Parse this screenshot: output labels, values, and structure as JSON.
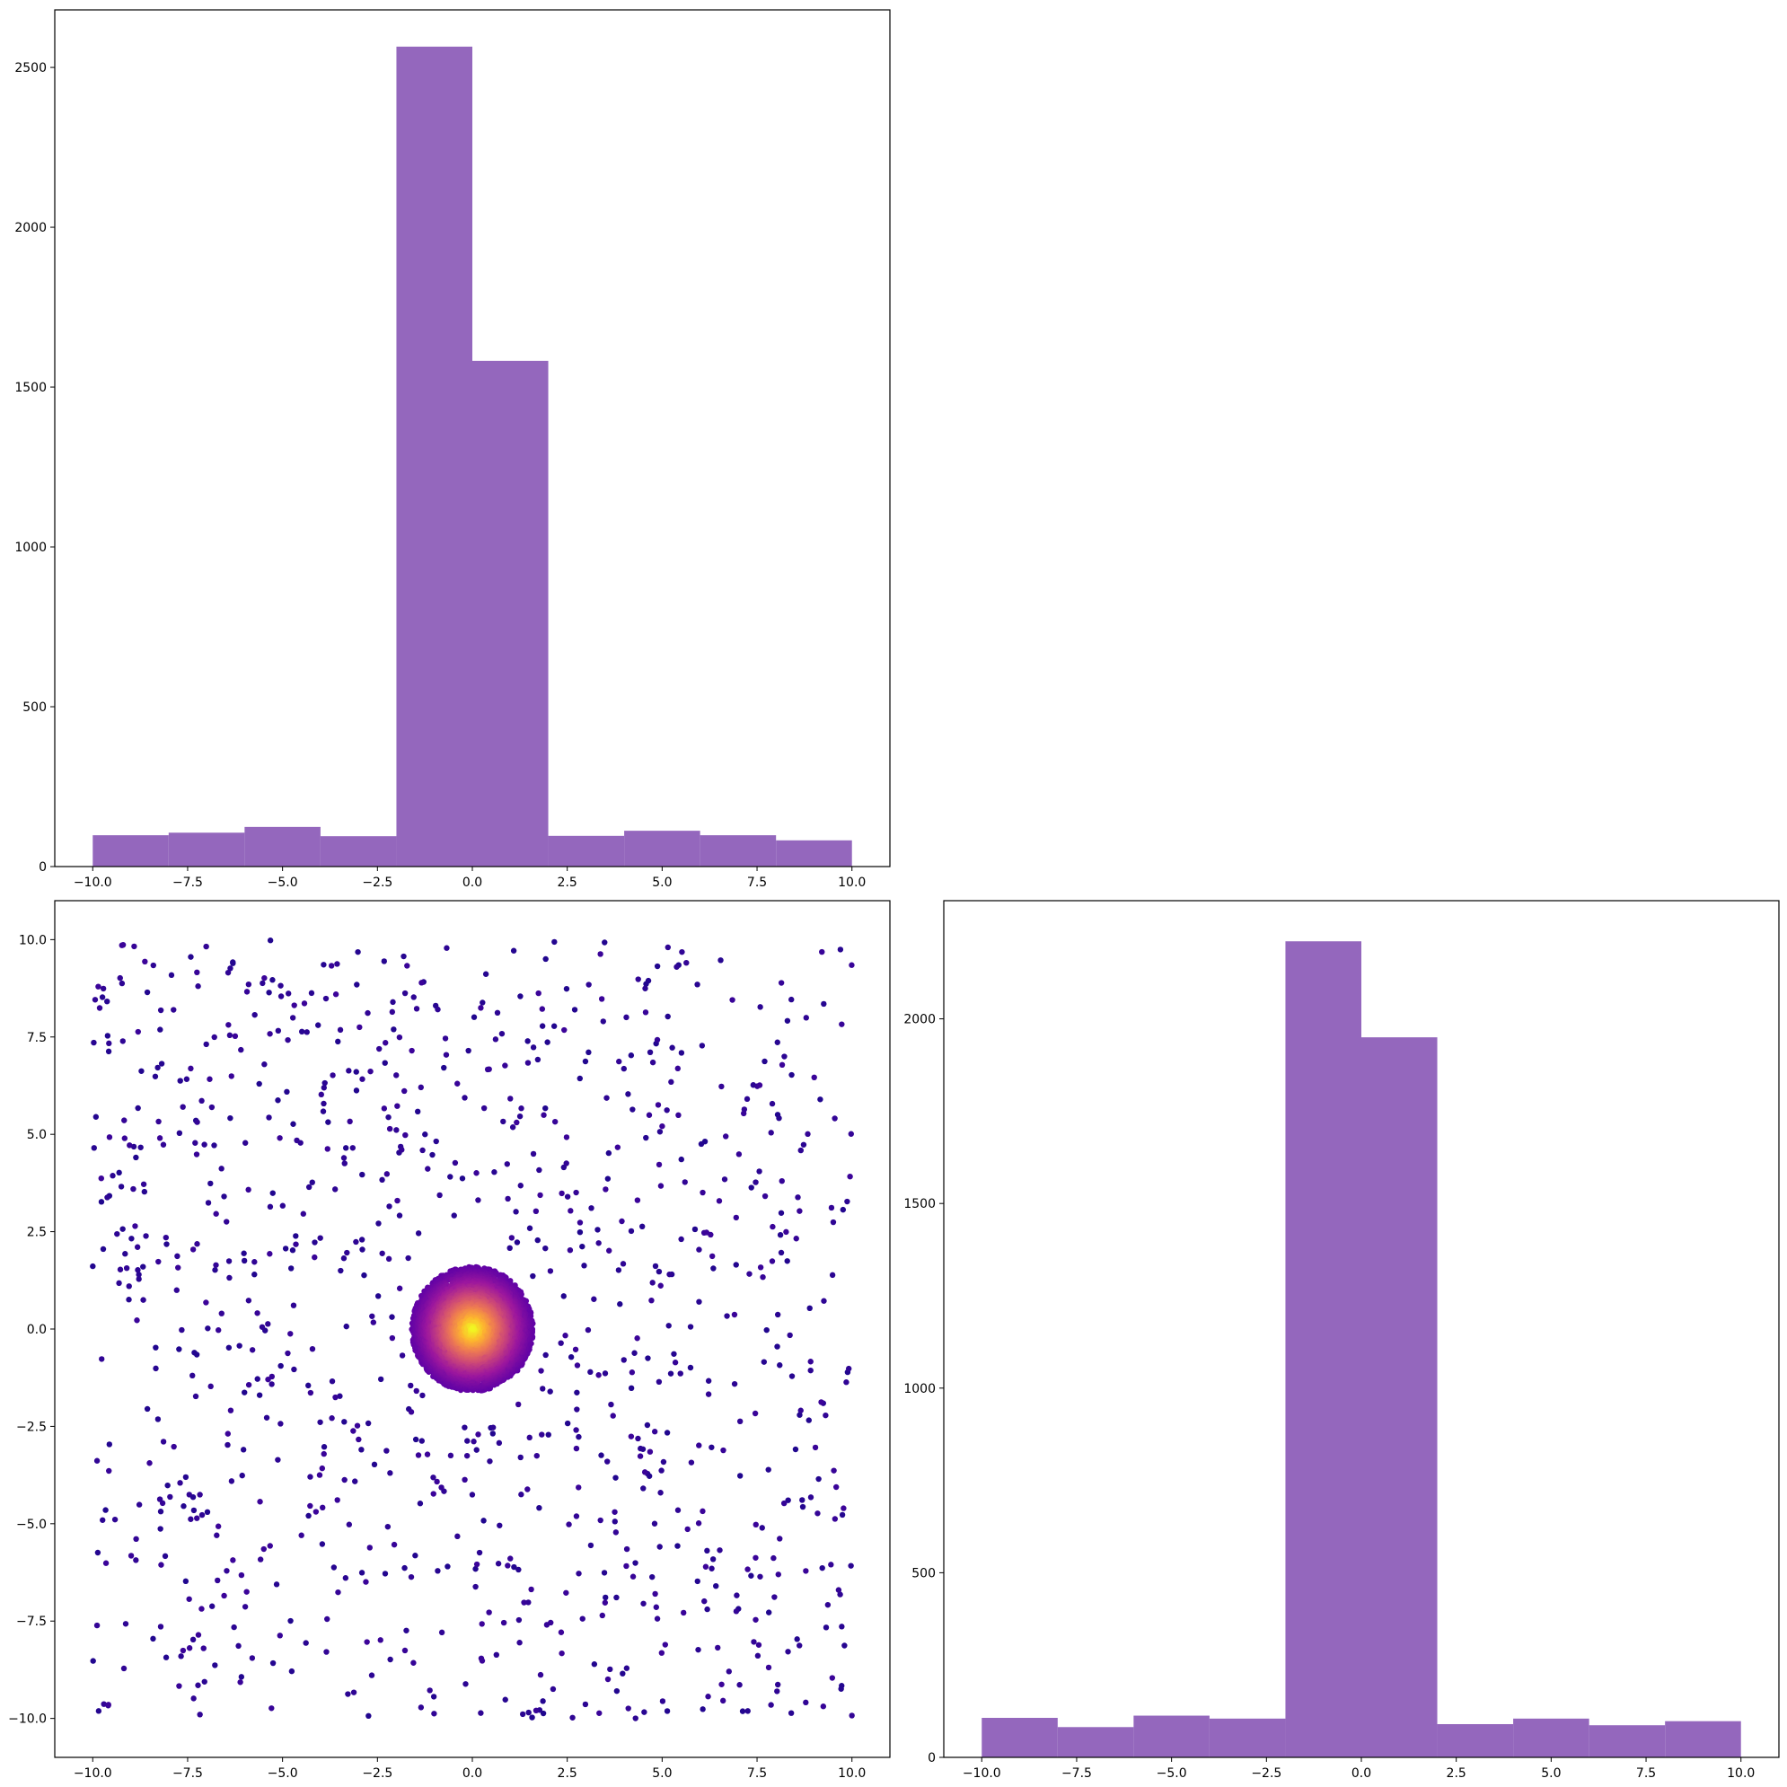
{
  "colors": {
    "bar_fill": "#9467bd",
    "axis": "#000000",
    "background": "#ffffff",
    "colormap": [
      "#0d0887",
      "#5c01a6",
      "#9c179e",
      "#cc4778",
      "#ed7953",
      "#fdb42f",
      "#f0f921"
    ]
  },
  "chart_data": [
    {
      "id": "hist_x",
      "type": "bar",
      "subtype": "histogram",
      "title": "",
      "xlabel": "",
      "ylabel": "",
      "bin_edges": [
        -10,
        -8,
        -6,
        -4,
        -2,
        0,
        2,
        4,
        6,
        8,
        10
      ],
      "values": [
        98,
        106,
        124,
        95,
        2565,
        1582,
        96,
        112,
        98,
        82
      ],
      "xlim": [
        -11,
        11
      ],
      "ylim": [
        0,
        2680
      ],
      "xticks": [
        -10,
        -7.5,
        -5,
        -2.5,
        0,
        2.5,
        5,
        7.5,
        10
      ],
      "xtick_labels": [
        "−10.0",
        "−7.5",
        "−5.0",
        "−2.5",
        "0.0",
        "2.5",
        "5.0",
        "7.5",
        "10.0"
      ],
      "yticks": [
        0,
        500,
        1000,
        1500,
        2000,
        2500
      ],
      "ytick_labels": [
        "0",
        "500",
        "1000",
        "1500",
        "2000",
        "2500"
      ],
      "grid": false
    },
    {
      "id": "scatter_xy",
      "type": "scatter",
      "title": "",
      "xlabel": "",
      "ylabel": "",
      "xlim": [
        -11,
        11
      ],
      "ylim": [
        -11,
        11
      ],
      "description_of_data": "approx. 4000 points in a dense cluster of radius ~1.6 centred at (0,0) colored by density (plasma colormap, yellow at centre), plus ~1000 uniformly scattered points over [-10,10]x[-10,10] in dark purple",
      "cluster": {
        "center": [
          0,
          0
        ],
        "radius": 1.6,
        "count": 4000
      },
      "uniform": {
        "range": [
          -10,
          10
        ],
        "count": 1000
      },
      "xticks": [
        -10,
        -7.5,
        -5,
        -2.5,
        0,
        2.5,
        5,
        7.5,
        10
      ],
      "xtick_labels": [
        "−10.0",
        "−7.5",
        "−5.0",
        "−2.5",
        "0.0",
        "2.5",
        "5.0",
        "7.5",
        "10.0"
      ],
      "yticks": [
        -10,
        -7.5,
        -5,
        -2.5,
        0,
        2.5,
        5,
        7.5,
        10
      ],
      "ytick_labels": [
        "−10.0",
        "−7.5",
        "−5.0",
        "−2.5",
        "0.0",
        "2.5",
        "5.0",
        "7.5",
        "10.0"
      ],
      "grid": false
    },
    {
      "id": "hist_y",
      "type": "bar",
      "subtype": "histogram",
      "title": "",
      "xlabel": "",
      "ylabel": "",
      "bin_edges": [
        -10,
        -8,
        -6,
        -4,
        -2,
        0,
        2,
        4,
        6,
        8,
        10
      ],
      "values": [
        107,
        82,
        113,
        105,
        2210,
        1950,
        90,
        105,
        87,
        98
      ],
      "xlim": [
        -11,
        11
      ],
      "ylim": [
        0,
        2320
      ],
      "xticks": [
        -10,
        -7.5,
        -5,
        -2.5,
        0,
        2.5,
        5,
        7.5,
        10
      ],
      "xtick_labels": [
        "−10.0",
        "−7.5",
        "−5.0",
        "−2.5",
        "0.0",
        "2.5",
        "5.0",
        "7.5",
        "10.0"
      ],
      "yticks": [
        0,
        500,
        1000,
        1500,
        2000
      ],
      "ytick_labels": [
        "0",
        "500",
        "1000",
        "1500",
        "2000"
      ],
      "grid": false
    }
  ]
}
